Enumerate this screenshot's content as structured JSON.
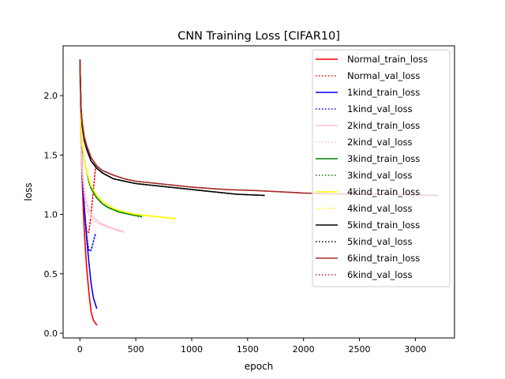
{
  "chart_data": {
    "type": "line",
    "title": "CNN Training Loss [CIFAR10]",
    "xlabel": "epoch",
    "ylabel": "loss",
    "xlim": [
      -150,
      3350
    ],
    "ylim": [
      -0.04,
      2.42
    ],
    "xticks": [
      0,
      500,
      1000,
      1500,
      2000,
      2500,
      3000
    ],
    "yticks": [
      0.0,
      0.5,
      1.0,
      1.5,
      2.0
    ],
    "xtick_labels": [
      "0",
      "500",
      "1000",
      "1500",
      "2000",
      "2500",
      "3000"
    ],
    "ytick_labels": [
      "0.0",
      "0.5",
      "1.0",
      "1.5",
      "2.0"
    ],
    "grid": false,
    "legend_position": "upper right",
    "series": [
      {
        "name": "Normal_train_loss",
        "color": "#ff0000",
        "style": "solid",
        "x": [
          0,
          5,
          10,
          20,
          30,
          40,
          60,
          80,
          100,
          120,
          150
        ],
        "y": [
          2.3,
          1.95,
          1.6,
          1.3,
          1.05,
          0.85,
          0.55,
          0.35,
          0.18,
          0.11,
          0.07
        ]
      },
      {
        "name": "Normal_val_loss",
        "color": "#ff0000",
        "style": "dotted",
        "x": [
          0,
          5,
          10,
          20,
          30,
          40,
          50,
          60,
          80,
          100,
          120,
          140
        ],
        "y": [
          2.3,
          1.95,
          1.7,
          1.4,
          1.2,
          1.05,
          0.95,
          0.85,
          0.85,
          1.0,
          1.2,
          1.4
        ]
      },
      {
        "name": "1kind_train_loss",
        "color": "#0000ff",
        "style": "solid",
        "x": [
          0,
          5,
          10,
          20,
          30,
          40,
          60,
          80,
          100,
          120,
          150
        ],
        "y": [
          2.3,
          1.95,
          1.7,
          1.4,
          1.2,
          1.05,
          0.8,
          0.6,
          0.42,
          0.3,
          0.21
        ]
      },
      {
        "name": "1kind_val_loss",
        "color": "#0000ff",
        "style": "dotted",
        "x": [
          0,
          5,
          10,
          20,
          30,
          40,
          50,
          60,
          70,
          80,
          90,
          100,
          110,
          120,
          140
        ],
        "y": [
          2.3,
          1.95,
          1.7,
          1.4,
          1.2,
          1.05,
          0.93,
          0.83,
          0.75,
          0.7,
          0.69,
          0.7,
          0.73,
          0.77,
          0.84
        ]
      },
      {
        "name": "2kind_train_loss",
        "color": "#ffc0cb",
        "style": "solid",
        "x": [
          0,
          10,
          20,
          40,
          60,
          80,
          100,
          150,
          200,
          250,
          300,
          350,
          390
        ],
        "y": [
          2.3,
          1.6,
          1.4,
          1.2,
          1.1,
          1.04,
          1.0,
          0.95,
          0.92,
          0.9,
          0.88,
          0.86,
          0.85
        ]
      },
      {
        "name": "2kind_val_loss",
        "color": "#ffc0cb",
        "style": "dotted",
        "x": [
          0,
          10,
          20,
          40,
          60,
          80,
          100,
          150,
          200,
          250,
          300,
          350,
          390
        ],
        "y": [
          2.3,
          1.55,
          1.35,
          1.15,
          1.05,
          1.0,
          0.97,
          0.93,
          0.91,
          0.89,
          0.88,
          0.87,
          0.86
        ]
      },
      {
        "name": "3kind_train_loss",
        "color": "#008000",
        "style": "solid",
        "x": [
          0,
          10,
          20,
          40,
          60,
          80,
          100,
          150,
          200,
          250,
          300,
          350,
          400,
          450,
          500,
          550
        ],
        "y": [
          2.3,
          1.8,
          1.6,
          1.45,
          1.36,
          1.28,
          1.22,
          1.14,
          1.09,
          1.06,
          1.04,
          1.02,
          1.01,
          1.0,
          0.99,
          0.99
        ]
      },
      {
        "name": "3kind_val_loss",
        "color": "#008000",
        "style": "dotted",
        "x": [
          0,
          10,
          20,
          40,
          60,
          80,
          100,
          150,
          200,
          250,
          300,
          350,
          400,
          450,
          500,
          550
        ],
        "y": [
          2.3,
          1.8,
          1.6,
          1.45,
          1.36,
          1.28,
          1.22,
          1.14,
          1.09,
          1.06,
          1.04,
          1.02,
          1.01,
          1.0,
          0.99,
          0.98
        ]
      },
      {
        "name": "4kind_train_loss",
        "color": "#ffff00",
        "style": "solid",
        "x": [
          0,
          10,
          20,
          40,
          60,
          80,
          100,
          150,
          200,
          300,
          400,
          500,
          600,
          700,
          800,
          850
        ],
        "y": [
          2.3,
          1.8,
          1.6,
          1.45,
          1.36,
          1.3,
          1.24,
          1.16,
          1.11,
          1.05,
          1.02,
          1.0,
          0.99,
          0.98,
          0.97,
          0.97
        ]
      },
      {
        "name": "4kind_val_loss",
        "color": "#ffff00",
        "style": "dotted",
        "x": [
          0,
          10,
          20,
          40,
          60,
          80,
          100,
          150,
          200,
          300,
          400,
          500,
          600,
          700,
          800,
          850
        ],
        "y": [
          2.3,
          1.8,
          1.6,
          1.45,
          1.36,
          1.3,
          1.24,
          1.16,
          1.11,
          1.05,
          1.02,
          1.0,
          0.99,
          0.98,
          0.97,
          0.96
        ]
      },
      {
        "name": "5kind_train_loss",
        "color": "#000000",
        "style": "solid",
        "x": [
          0,
          10,
          20,
          40,
          60,
          100,
          150,
          200,
          300,
          400,
          500,
          600,
          800,
          1000,
          1200,
          1400,
          1650
        ],
        "y": [
          2.3,
          1.9,
          1.75,
          1.62,
          1.55,
          1.45,
          1.39,
          1.35,
          1.3,
          1.28,
          1.26,
          1.25,
          1.23,
          1.21,
          1.19,
          1.17,
          1.16
        ]
      },
      {
        "name": "5kind_val_loss",
        "color": "#000000",
        "style": "dotted",
        "x": [
          0,
          10,
          20,
          40,
          60,
          100,
          150,
          200,
          300,
          400,
          500,
          600,
          800,
          1000,
          1200,
          1400,
          1650
        ],
        "y": [
          2.3,
          1.9,
          1.75,
          1.62,
          1.55,
          1.45,
          1.39,
          1.35,
          1.3,
          1.28,
          1.26,
          1.25,
          1.23,
          1.21,
          1.19,
          1.17,
          1.16
        ]
      },
      {
        "name": "6kind_train_loss",
        "color": "#a52a2a",
        "style": "solid",
        "x": [
          0,
          10,
          20,
          40,
          60,
          100,
          150,
          200,
          300,
          400,
          500,
          700,
          1000,
          1300,
          1600,
          2000,
          2400,
          2800,
          3200
        ],
        "y": [
          2.3,
          1.9,
          1.78,
          1.65,
          1.58,
          1.48,
          1.41,
          1.37,
          1.33,
          1.3,
          1.28,
          1.26,
          1.23,
          1.21,
          1.2,
          1.18,
          1.17,
          1.17,
          1.16
        ]
      },
      {
        "name": "6kind_val_loss",
        "color": "#a52a2a",
        "style": "dotted",
        "x": [
          0,
          10,
          20,
          40,
          60,
          100,
          150,
          200,
          300,
          400,
          500,
          700,
          1000,
          1300,
          1600,
          2000,
          2400,
          2800,
          3200
        ],
        "y": [
          2.3,
          1.9,
          1.78,
          1.65,
          1.58,
          1.48,
          1.41,
          1.37,
          1.33,
          1.3,
          1.28,
          1.26,
          1.23,
          1.21,
          1.2,
          1.18,
          1.17,
          1.17,
          1.16
        ]
      }
    ]
  }
}
